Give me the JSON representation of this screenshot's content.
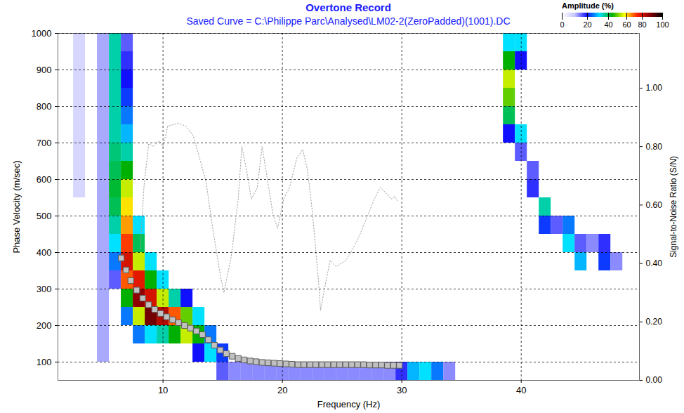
{
  "chart_data": {
    "type": "heatmap",
    "title": "Overtone Record",
    "subtitle": "Saved Curve = C:\\Philippe Parc\\Analysed\\LM02-2(ZeroPadded)(1001).DC",
    "x_label": "Frequency (Hz)",
    "y_label": "Phase Velocity (m/sec)",
    "y2_label": "Signal-to-Noise Ratio (S/N)",
    "xlim": [
      1.2,
      49.9
    ],
    "xticks": [
      10,
      20,
      30,
      40
    ],
    "ylim": [
      50,
      1000
    ],
    "yticks": [
      100,
      200,
      300,
      400,
      500,
      600,
      700,
      800,
      900,
      1000
    ],
    "y2lim": [
      0,
      1.1875
    ],
    "y2ticks": [
      {
        "value": 0,
        "label": "0.00"
      },
      {
        "value": 0.2,
        "label": "0.20"
      },
      {
        "value": 0.4,
        "label": "0.40"
      },
      {
        "value": 0.6,
        "label": "0.60"
      },
      {
        "value": 0.8,
        "label": "0.80"
      },
      {
        "value": 1.0,
        "label": "1.00"
      }
    ],
    "grid": true,
    "heatmap": {
      "cell_width": 1,
      "cell_height": 50,
      "colorbar": {
        "label": "Amplitude (%)",
        "range": [
          0,
          100
        ],
        "ticks": [
          0,
          20,
          40,
          60,
          80,
          100
        ]
      },
      "cells": [
        [
          3,
          575,
          6
        ],
        [
          3,
          625,
          6
        ],
        [
          3,
          675,
          6
        ],
        [
          3,
          725,
          6
        ],
        [
          3,
          775,
          6
        ],
        [
          3,
          825,
          6
        ],
        [
          3,
          875,
          6
        ],
        [
          3,
          925,
          6
        ],
        [
          3,
          975,
          6
        ],
        [
          5,
          125,
          10
        ],
        [
          5,
          175,
          10
        ],
        [
          5,
          225,
          10
        ],
        [
          5,
          275,
          10
        ],
        [
          5,
          325,
          10
        ],
        [
          5,
          375,
          10
        ],
        [
          5,
          425,
          10
        ],
        [
          5,
          475,
          10
        ],
        [
          5,
          525,
          10
        ],
        [
          5,
          575,
          10
        ],
        [
          5,
          625,
          10
        ],
        [
          5,
          675,
          10
        ],
        [
          5,
          725,
          10
        ],
        [
          5,
          775,
          10
        ],
        [
          5,
          825,
          10
        ],
        [
          5,
          875,
          10
        ],
        [
          5,
          925,
          10
        ],
        [
          5,
          975,
          10
        ],
        [
          6,
          975,
          35
        ],
        [
          6,
          925,
          35
        ],
        [
          6,
          875,
          35
        ],
        [
          6,
          825,
          35
        ],
        [
          6,
          775,
          35
        ],
        [
          6,
          725,
          35
        ],
        [
          6,
          675,
          38
        ],
        [
          6,
          625,
          40
        ],
        [
          6,
          575,
          42
        ],
        [
          6,
          525,
          40
        ],
        [
          6,
          475,
          35
        ],
        [
          6,
          425,
          30
        ],
        [
          6,
          375,
          25
        ],
        [
          6,
          325,
          15
        ],
        [
          7,
          975,
          15
        ],
        [
          7,
          925,
          18
        ],
        [
          7,
          875,
          20
        ],
        [
          7,
          825,
          22
        ],
        [
          7,
          775,
          25
        ],
        [
          7,
          725,
          28
        ],
        [
          7,
          675,
          35
        ],
        [
          7,
          625,
          45
        ],
        [
          7,
          575,
          55
        ],
        [
          7,
          525,
          60
        ],
        [
          7,
          475,
          65
        ],
        [
          7,
          425,
          72
        ],
        [
          7,
          375,
          80
        ],
        [
          7,
          325,
          70
        ],
        [
          7,
          275,
          45
        ],
        [
          7,
          225,
          25
        ],
        [
          8,
          475,
          30
        ],
        [
          8,
          425,
          40
        ],
        [
          8,
          375,
          55
        ],
        [
          8,
          325,
          78
        ],
        [
          8,
          275,
          90
        ],
        [
          8,
          225,
          55
        ],
        [
          8,
          175,
          25
        ],
        [
          9,
          375,
          30
        ],
        [
          9,
          325,
          45
        ],
        [
          9,
          275,
          80
        ],
        [
          9,
          225,
          92
        ],
        [
          9,
          175,
          30
        ],
        [
          10,
          325,
          30
        ],
        [
          10,
          275,
          55
        ],
        [
          10,
          225,
          85
        ],
        [
          10,
          175,
          35
        ],
        [
          11,
          275,
          35
        ],
        [
          11,
          225,
          70
        ],
        [
          11,
          175,
          45
        ],
        [
          12,
          275,
          20
        ],
        [
          12,
          225,
          50
        ],
        [
          12,
          175,
          55
        ],
        [
          13,
          225,
          30
        ],
        [
          13,
          175,
          45
        ],
        [
          13,
          125,
          20
        ],
        [
          14,
          175,
          25
        ],
        [
          14,
          125,
          30
        ],
        [
          15,
          125,
          22
        ],
        [
          15,
          75,
          15
        ],
        [
          16,
          75,
          12
        ],
        [
          17,
          75,
          12
        ],
        [
          18,
          75,
          12
        ],
        [
          19,
          75,
          12
        ],
        [
          20,
          75,
          12
        ],
        [
          21,
          75,
          12
        ],
        [
          22,
          75,
          12
        ],
        [
          23,
          75,
          12
        ],
        [
          24,
          75,
          12
        ],
        [
          25,
          75,
          12
        ],
        [
          26,
          75,
          12
        ],
        [
          27,
          75,
          12
        ],
        [
          28,
          75,
          12
        ],
        [
          29,
          75,
          12
        ],
        [
          30,
          75,
          18
        ],
        [
          31,
          75,
          28
        ],
        [
          32,
          75,
          30
        ],
        [
          33,
          75,
          25
        ],
        [
          34,
          75,
          12
        ],
        [
          39,
          975,
          30
        ],
        [
          39,
          925,
          45
        ],
        [
          39,
          875,
          55
        ],
        [
          39,
          825,
          50
        ],
        [
          39,
          775,
          40
        ],
        [
          39,
          725,
          20
        ],
        [
          40,
          975,
          30
        ],
        [
          40,
          925,
          20
        ],
        [
          40,
          725,
          30
        ],
        [
          40,
          675,
          15
        ],
        [
          41,
          625,
          15
        ],
        [
          41,
          575,
          18
        ],
        [
          42,
          525,
          35
        ],
        [
          42,
          475,
          22
        ],
        [
          43,
          475,
          15
        ],
        [
          44,
          475,
          25
        ],
        [
          44,
          425,
          30
        ],
        [
          45,
          375,
          28
        ],
        [
          45,
          425,
          15
        ],
        [
          46,
          425,
          12
        ],
        [
          47,
          425,
          18
        ],
        [
          47,
          375,
          22
        ],
        [
          48,
          375,
          12
        ]
      ]
    },
    "series": [
      {
        "type": "scatter",
        "marker": "square",
        "color": "#c0c0c0",
        "x": [
          6.5,
          6.9,
          7.3,
          7.8,
          8.3,
          8.8,
          9.3,
          9.8,
          10.3,
          10.8,
          11.3,
          11.8,
          12.3,
          12.8,
          13.3,
          13.8,
          14.3,
          14.8,
          15.3,
          15.8,
          16.3,
          16.8,
          17.3,
          17.8,
          18.3,
          18.8,
          19.3,
          19.8,
          20.3,
          20.8,
          21.3,
          21.8,
          22.3,
          22.8,
          23.3,
          23.8,
          24.3,
          24.8,
          25.3,
          25.8,
          26.3,
          26.8,
          27.3,
          27.8,
          28.3,
          28.8,
          29.3,
          29.8
        ],
        "values": [
          385,
          352,
          323,
          297,
          275,
          257,
          244,
          233,
          224,
          216,
          208,
          200,
          193,
          185,
          175,
          161,
          146,
          133,
          123,
          116,
          110,
          106,
          103,
          101,
          99,
          98,
          97,
          96,
          95,
          94,
          93,
          93,
          93,
          93,
          93,
          93,
          93,
          93,
          93,
          93,
          93,
          93,
          92,
          92,
          92,
          91,
          91,
          91
        ]
      },
      {
        "type": "line",
        "axis": "y2",
        "line_style": "dotted",
        "color": "#a0a0a0",
        "x": [
          8.1,
          8.4,
          8.8,
          9.2,
          9.7,
          10.0,
          10.4,
          11.3,
          11.9,
          12.5,
          13.0,
          13.6,
          14.2,
          14.8,
          15.1,
          15.7,
          16.3,
          16.6,
          17.0,
          17.4,
          17.9,
          18.3,
          18.7,
          19.2,
          19.6,
          20.1,
          20.6,
          21.2,
          21.7,
          22.1,
          22.5,
          23.0,
          23.2,
          23.6,
          24.0,
          24.5,
          25.3,
          25.9,
          26.5,
          27.1,
          27.7,
          28.2,
          28.7,
          29.1,
          29.4,
          29.7
        ],
        "values": [
          0.45,
          0.66,
          0.81,
          0.8,
          0.82,
          0.8,
          0.87,
          0.88,
          0.87,
          0.84,
          0.77,
          0.68,
          0.51,
          0.36,
          0.3,
          0.42,
          0.62,
          0.8,
          0.72,
          0.62,
          0.66,
          0.8,
          0.7,
          0.57,
          0.52,
          0.62,
          0.66,
          0.76,
          0.79,
          0.72,
          0.58,
          0.35,
          0.24,
          0.33,
          0.41,
          0.39,
          0.41,
          0.45,
          0.5,
          0.56,
          0.62,
          0.66,
          0.64,
          0.62,
          0.63,
          0.61
        ]
      }
    ]
  }
}
